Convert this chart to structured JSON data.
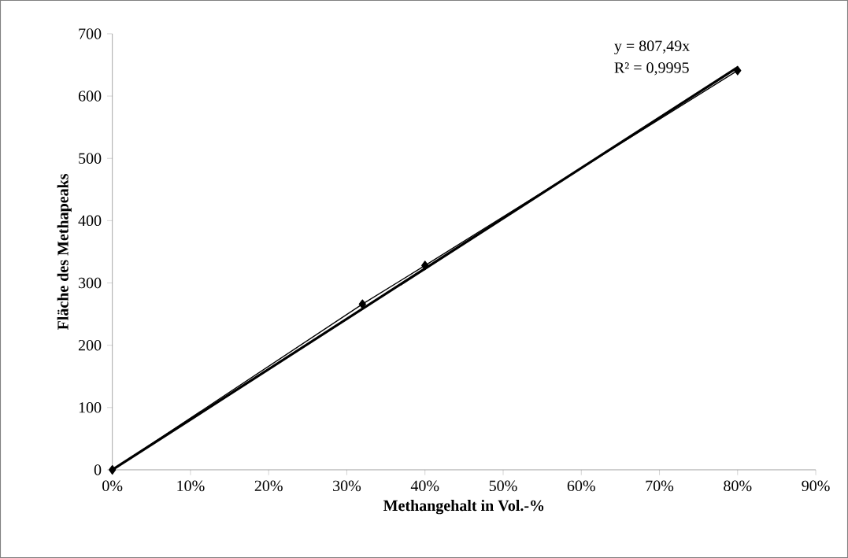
{
  "chart_data": {
    "type": "line",
    "xlabel": "Methangehalt in Vol.-%",
    "ylabel": "Fläche des Methapeaks",
    "xlim": [
      0,
      90
    ],
    "xticks": [
      {
        "value": 0,
        "label": "0%"
      },
      {
        "value": 10,
        "label": "10%"
      },
      {
        "value": 20,
        "label": "20%"
      },
      {
        "value": 30,
        "label": "30%"
      },
      {
        "value": 40,
        "label": "40%"
      },
      {
        "value": 50,
        "label": "50%"
      },
      {
        "value": 60,
        "label": "60%"
      },
      {
        "value": 70,
        "label": "70%"
      },
      {
        "value": 80,
        "label": "80%"
      },
      {
        "value": 90,
        "label": "90%"
      }
    ],
    "ylim": [
      0,
      700
    ],
    "yticks": [
      0,
      100,
      200,
      300,
      400,
      500,
      600,
      700
    ],
    "series": [
      {
        "color": "#000000",
        "marker": "diamond",
        "x": [
          0,
          32,
          40,
          80
        ],
        "values": [
          0,
          266,
          328,
          641
        ]
      },
      {
        "color": "#000000",
        "marker": "none",
        "x": [
          0,
          80
        ],
        "values": [
          0,
          646
        ]
      }
    ],
    "annotations": [
      "y = 807,49x",
      "R² = 0,9995"
    ]
  }
}
